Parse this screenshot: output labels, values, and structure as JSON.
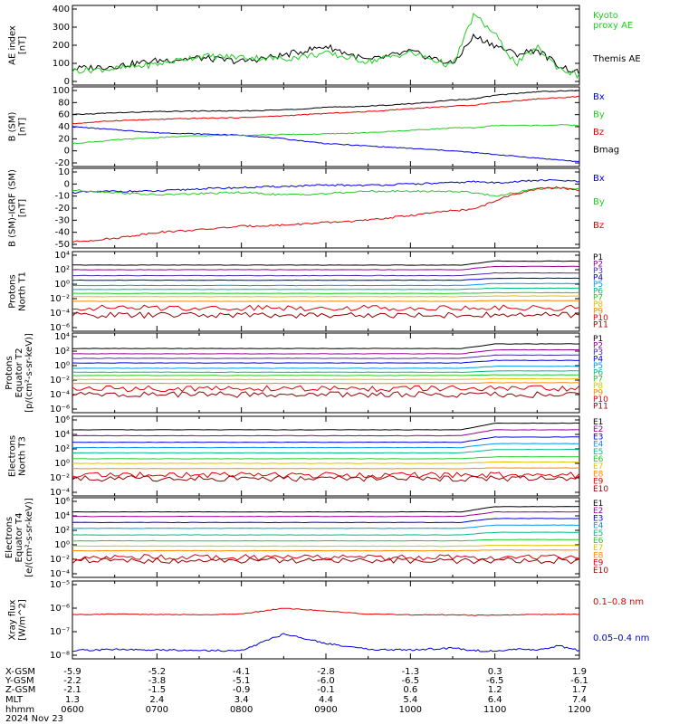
{
  "date_label": "2024 Nov 23",
  "colors": {
    "black": "#000000",
    "red": "#e00000",
    "green": "#22cc22",
    "blue": "#0000dd"
  },
  "ephemeris": {
    "rows": [
      {
        "label": "X-GSM",
        "values": [
          "-5.9",
          "-5.2",
          "-4.1",
          "-2.8",
          "-1.3",
          "0.3",
          "1.9"
        ]
      },
      {
        "label": "Y-GSM",
        "values": [
          "-2.2",
          "-3.8",
          "-5.1",
          "-6.0",
          "-6.5",
          "-6.5",
          "-6.1"
        ]
      },
      {
        "label": "Z-GSM",
        "values": [
          "-2.1",
          "-1.5",
          "-0.9",
          "-0.1",
          "0.6",
          "1.2",
          "1.7"
        ]
      },
      {
        "label": "MLT",
        "values": [
          "1.3",
          "2.4",
          "3.4",
          "4.4",
          "5.4",
          "6.4",
          "7.4"
        ]
      },
      {
        "label": "hhmm",
        "values": [
          "0600",
          "0700",
          "0800",
          "0900",
          "1000",
          "1100",
          "1200"
        ]
      }
    ]
  },
  "panels": [
    {
      "key": "ae",
      "ylabel": [
        "AE index",
        "[nT]"
      ],
      "ticks": [
        "400",
        "300",
        "200",
        "100",
        "0"
      ],
      "legend": [
        {
          "text": "Kyoto",
          "color": "green"
        },
        {
          "text": "proxy AE",
          "color": "green"
        },
        {
          "text": "Themis AE",
          "color": "black"
        }
      ]
    },
    {
      "key": "bsm",
      "ylabel": [
        "B (SM)",
        "[nT]"
      ],
      "ticks": [
        "100",
        "80",
        "60",
        "40",
        "20",
        "0",
        "-20"
      ],
      "legend": [
        {
          "text": "Bx",
          "color": "blue"
        },
        {
          "text": "By",
          "color": "green"
        },
        {
          "text": "Bz",
          "color": "red"
        },
        {
          "text": "Bmag",
          "color": "black"
        }
      ]
    },
    {
      "key": "bigrf",
      "ylabel": [
        "B (SM)-IGRF (SM)",
        "[nT]"
      ],
      "ticks": [
        "10",
        "0",
        "-10",
        "-20",
        "-30",
        "-40",
        "-50"
      ],
      "legend": [
        {
          "text": "Bx",
          "color": "blue"
        },
        {
          "text": "By",
          "color": "green"
        },
        {
          "text": "Bz",
          "color": "red"
        }
      ]
    },
    {
      "key": "pt1",
      "ylabel": [
        "Protons",
        "North T1"
      ],
      "ticks": [
        "10⁴",
        "10²",
        "10⁰",
        "10⁻²",
        "10⁻⁴",
        "10⁻⁶"
      ],
      "channels": [
        "P1",
        "P2",
        "P3",
        "P4",
        "P5",
        "P6",
        "P7",
        "P8",
        "P9",
        "P10",
        "P11"
      ]
    },
    {
      "key": "pt2",
      "ylabel": [
        "Protons",
        "Equator T2",
        "[p/(cm²-s-sr-keV)]"
      ],
      "ticks": [
        "10⁴",
        "10²",
        "10⁰",
        "10⁻²",
        "10⁻⁴",
        "10⁻⁶"
      ],
      "channels": [
        "P1",
        "P2",
        "P3",
        "P4",
        "P5",
        "P6",
        "P7",
        "P8",
        "P9",
        "P10",
        "P11"
      ]
    },
    {
      "key": "et3",
      "ylabel": [
        "Electrons",
        "North T3"
      ],
      "ticks": [
        "10⁶",
        "10⁴",
        "10²",
        "10⁰",
        "10⁻²",
        "10⁻⁴"
      ],
      "channels": [
        "E1",
        "E2",
        "E3",
        "E4",
        "E5",
        "E6",
        "E7",
        "E8",
        "E9",
        "E10"
      ]
    },
    {
      "key": "et4",
      "ylabel": [
        "Electrons",
        "Equator T4",
        "[e/(cm²-s-sr-keV)]"
      ],
      "ticks": [
        "10⁶",
        "10⁴",
        "10²",
        "10⁰",
        "10⁻²",
        "10⁻⁴"
      ],
      "channels": [
        "E1",
        "E2",
        "E3",
        "E4",
        "E5",
        "E6",
        "E7",
        "E8",
        "E9",
        "E10"
      ]
    },
    {
      "key": "xray",
      "ylabel": [
        "Xray flux",
        "[W/m^2]"
      ],
      "ticks": [
        "10⁻⁵",
        "10⁻⁶",
        "10⁻⁷",
        "10⁻⁸"
      ],
      "legend": [
        {
          "text": "0.1–0.8 nm",
          "color": "red"
        },
        {
          "text": "0.05–0.4 nm",
          "color": "blue"
        }
      ]
    }
  ],
  "chart_data": {
    "type": "line",
    "time_range": [
      "0600",
      "1200"
    ],
    "hours": [
      6,
      6.5,
      7,
      7.5,
      8,
      8.5,
      9,
      9.5,
      10,
      10.5,
      10.75,
      11,
      11.25,
      11.5,
      11.75,
      12
    ],
    "ae": {
      "ylim": [
        0,
        400
      ],
      "series": [
        {
          "name": "Themis AE",
          "color": "black",
          "values": [
            70,
            85,
            115,
            130,
            110,
            145,
            195,
            115,
            165,
            95,
            250,
            200,
            150,
            175,
            90,
            45
          ]
        },
        {
          "name": "Kyoto proxy AE",
          "color": "green",
          "values": [
            60,
            70,
            95,
            140,
            135,
            125,
            155,
            110,
            160,
            85,
            370,
            260,
            95,
            190,
            75,
            30
          ]
        }
      ]
    },
    "bsm": {
      "ylim": [
        -20,
        100
      ],
      "series": [
        {
          "name": "Bx",
          "color": "blue",
          "values": [
            40,
            35,
            30,
            28,
            26,
            20,
            12,
            8,
            4,
            0,
            -3,
            -6,
            -9,
            -12,
            -15,
            -18
          ]
        },
        {
          "name": "By",
          "color": "green",
          "values": [
            12,
            18,
            22,
            25,
            26,
            27,
            28,
            30,
            34,
            38,
            38,
            42,
            42,
            42,
            43,
            42
          ]
        },
        {
          "name": "Bz",
          "color": "red",
          "values": [
            45,
            50,
            52,
            54,
            55,
            58,
            62,
            65,
            70,
            74,
            76,
            80,
            83,
            86,
            88,
            90
          ]
        },
        {
          "name": "Bmag",
          "color": "black",
          "values": [
            60,
            63,
            65,
            66,
            66,
            68,
            72,
            74,
            78,
            84,
            86,
            92,
            95,
            98,
            99,
            100
          ]
        }
      ]
    },
    "bigrf": {
      "ylim": [
        -50,
        10
      ],
      "series": [
        {
          "name": "Bx",
          "color": "blue",
          "values": [
            -7,
            -6,
            -6,
            -4,
            -3,
            -2,
            -1,
            -1,
            0,
            1,
            2,
            1,
            2,
            3,
            3,
            2
          ]
        },
        {
          "name": "By",
          "color": "green",
          "values": [
            -5,
            -7,
            -9,
            -8,
            -7,
            -9,
            -8,
            -6,
            -6,
            -6,
            -7,
            -10,
            -7,
            -4,
            -3,
            -4
          ]
        },
        {
          "name": "Bz",
          "color": "red",
          "values": [
            -48,
            -45,
            -40,
            -38,
            -35,
            -34,
            -32,
            -30,
            -26,
            -22,
            -21,
            -14,
            -8,
            -4,
            -3,
            -5
          ]
        }
      ]
    },
    "pt1": {
      "ylim_log10": [
        -7,
        4
      ],
      "channels": [
        {
          "name": "P1",
          "color": "#000000",
          "base": 2.5,
          "bump": 0.6
        },
        {
          "name": "P2",
          "color": "#990099",
          "base": 1.8,
          "bump": 0.5
        },
        {
          "name": "P3",
          "color": "#4b2aa6",
          "base": 0.9,
          "bump": 0.4
        },
        {
          "name": "P4",
          "color": "#0000dd",
          "base": 0.2,
          "bump": 0.3
        },
        {
          "name": "P5",
          "color": "#0099ee",
          "base": -0.6,
          "bump": 0.3
        },
        {
          "name": "P6",
          "color": "#00bb88",
          "base": -1.2,
          "bump": 0.2
        },
        {
          "name": "P7",
          "color": "#22cc22",
          "base": -1.8,
          "bump": 0.1
        },
        {
          "name": "P8",
          "color": "#e0c000",
          "base": -2.3,
          "bump": 0.1
        },
        {
          "name": "P9",
          "color": "#ff8800",
          "base": -3.0,
          "bump": 0.1
        },
        {
          "name": "P10",
          "color": "#e00000",
          "base": -4.0,
          "bump": 0.0
        },
        {
          "name": "P11",
          "color": "#990000",
          "base": -5.1,
          "bump": 0.0
        }
      ]
    },
    "pt2": {
      "ylim_log10": [
        -7,
        4
      ],
      "channels": [
        {
          "name": "P1",
          "color": "#000000",
          "base": 2.2,
          "bump": 0.7
        },
        {
          "name": "P2",
          "color": "#990099",
          "base": 1.4,
          "bump": 0.6
        },
        {
          "name": "P3",
          "color": "#4b2aa6",
          "base": 0.7,
          "bump": 0.5
        },
        {
          "name": "P4",
          "color": "#0000dd",
          "base": 0.0,
          "bump": 0.4
        },
        {
          "name": "P5",
          "color": "#0099ee",
          "base": -0.8,
          "bump": 0.3
        },
        {
          "name": "P6",
          "color": "#00bb88",
          "base": -1.4,
          "bump": 0.2
        },
        {
          "name": "P7",
          "color": "#22cc22",
          "base": -1.9,
          "bump": 0.1
        },
        {
          "name": "P8",
          "color": "#e0c000",
          "base": -2.5,
          "bump": 0.1
        },
        {
          "name": "P9",
          "color": "#ff8800",
          "base": -3.1,
          "bump": 0.1
        },
        {
          "name": "P10",
          "color": "#e00000",
          "base": -3.9,
          "bump": 0.0
        },
        {
          "name": "P11",
          "color": "#990000",
          "base": -4.8,
          "bump": 0.0
        }
      ]
    },
    "et3": {
      "ylim_log10": [
        -5,
        6
      ],
      "channels": [
        {
          "name": "E1",
          "color": "#000000",
          "base": 4.5,
          "bump": 1.0
        },
        {
          "name": "E2",
          "color": "#990099",
          "base": 3.6,
          "bump": 0.9
        },
        {
          "name": "E3",
          "color": "#0000dd",
          "base": 2.6,
          "bump": 0.8
        },
        {
          "name": "E4",
          "color": "#0099ee",
          "base": 1.8,
          "bump": 0.6
        },
        {
          "name": "E5",
          "color": "#00bb88",
          "base": 1.0,
          "bump": 0.5
        },
        {
          "name": "E6",
          "color": "#22cc22",
          "base": 0.1,
          "bump": 0.3
        },
        {
          "name": "E7",
          "color": "#e0c000",
          "base": -0.6,
          "bump": 0.2
        },
        {
          "name": "E8",
          "color": "#ff8800",
          "base": -1.4,
          "bump": 0.1
        },
        {
          "name": "E9",
          "color": "#e00000",
          "base": -2.4,
          "bump": 0.0
        },
        {
          "name": "E10",
          "color": "#990000",
          "base": -2.9,
          "bump": 0.0
        }
      ]
    },
    "et4": {
      "ylim_log10": [
        -5,
        6
      ],
      "channels": [
        {
          "name": "E1",
          "color": "#000000",
          "base": 4.4,
          "bump": 0.8
        },
        {
          "name": "E2",
          "color": "#990099",
          "base": 3.7,
          "bump": 0.7
        },
        {
          "name": "E3",
          "color": "#0000dd",
          "base": 2.8,
          "bump": 0.6
        },
        {
          "name": "E4",
          "color": "#0099ee",
          "base": 1.9,
          "bump": 0.5
        },
        {
          "name": "E5",
          "color": "#00bb88",
          "base": 0.9,
          "bump": 0.4
        },
        {
          "name": "E6",
          "color": "#22cc22",
          "base": 0.0,
          "bump": 0.2
        },
        {
          "name": "E7",
          "color": "#e0c000",
          "base": -0.8,
          "bump": 0.1
        },
        {
          "name": "E8",
          "color": "#ff8800",
          "base": -1.5,
          "bump": 0.1
        },
        {
          "name": "E9",
          "color": "#e00000",
          "base": -2.5,
          "bump": 0.0
        },
        {
          "name": "E10",
          "color": "#990000",
          "base": -3.0,
          "bump": 0.0
        }
      ]
    },
    "xray": {
      "ylim_log10": [
        -8,
        -5
      ],
      "series": [
        {
          "name": "0.1–0.8 nm",
          "color": "red",
          "values": [
            -6.28,
            -6.25,
            -6.27,
            -6.28,
            -6.25,
            -6.0,
            -6.12,
            -6.25,
            -6.28,
            -6.28,
            -6.3,
            -6.3,
            -6.28,
            -6.27,
            -6.26,
            -6.26
          ]
        },
        {
          "name": "0.05–0.4 nm",
          "color": "blue",
          "values": [
            -7.8,
            -7.75,
            -7.78,
            -7.8,
            -7.8,
            -7.1,
            -7.5,
            -7.75,
            -7.78,
            -7.7,
            -7.8,
            -7.82,
            -7.75,
            -7.8,
            -7.6,
            -7.8
          ]
        }
      ]
    }
  }
}
